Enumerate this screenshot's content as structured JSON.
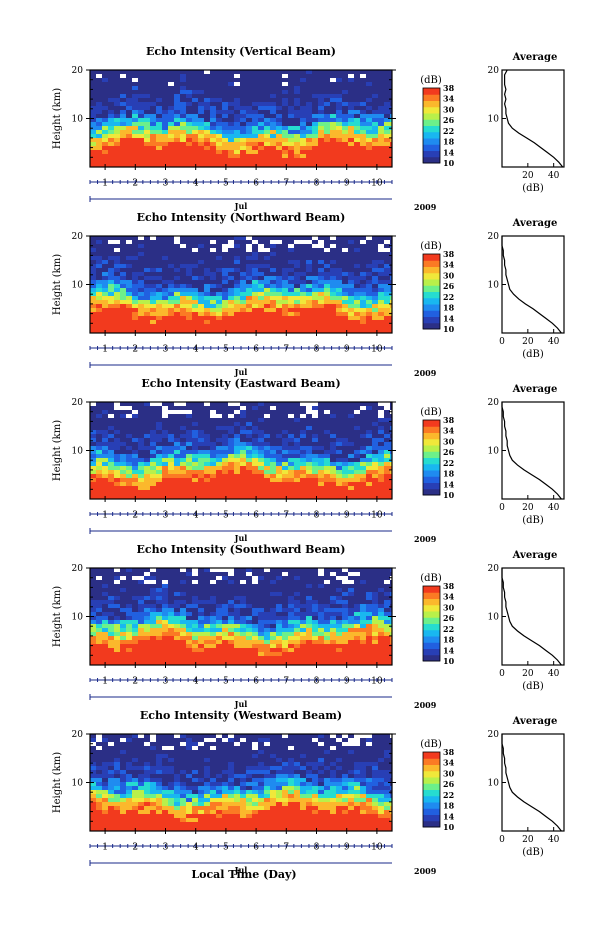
{
  "colors": {
    "colormap": [
      "#2b2f86",
      "#283fb5",
      "#2160e0",
      "#1f8bf0",
      "#19b7f0",
      "#26dcd0",
      "#6cf08a",
      "#b9f04a",
      "#f0e83a",
      "#fbb82c",
      "#fb7a24",
      "#f23a1e"
    ],
    "axis": "#000000",
    "time_tick": "#1a2a8a"
  },
  "chart_data": [
    {
      "type": "heatmap",
      "title": "Echo Intensity (Vertical Beam)",
      "ylabel": "Height (km)",
      "ylim": [
        0,
        20
      ],
      "yticks": [
        "20",
        "10"
      ],
      "xlim": [
        0.5,
        10.5
      ],
      "xticks": [
        "1",
        "2",
        "3",
        "4",
        "5",
        "6",
        "7",
        "8",
        "9",
        "10"
      ],
      "month_label": "Jul",
      "year_label": "2009",
      "colorbar": {
        "label": "(dB)",
        "ticks": [
          "38",
          "34",
          "30",
          "26",
          "22",
          "18",
          "14",
          "10"
        ],
        "range": [
          10,
          38
        ]
      },
      "average_profile": {
        "title": "Average",
        "xlabel": "(dB)",
        "xticks": [
          "20",
          "40"
        ],
        "yticks": [
          "20",
          "10"
        ],
        "xlim": [
          0,
          48
        ],
        "ylim": [
          0,
          20
        ],
        "points": [
          [
            47,
            0
          ],
          [
            44,
            1
          ],
          [
            40,
            2
          ],
          [
            35,
            3
          ],
          [
            30,
            4
          ],
          [
            25,
            5
          ],
          [
            19,
            6
          ],
          [
            13,
            7
          ],
          [
            8,
            8
          ],
          [
            5,
            9
          ],
          [
            4,
            10
          ],
          [
            3,
            11
          ],
          [
            3,
            12
          ],
          [
            2,
            13
          ],
          [
            3,
            14
          ],
          [
            2,
            15
          ],
          [
            3,
            16
          ],
          [
            2,
            17
          ],
          [
            2,
            18
          ],
          [
            2,
            19
          ],
          [
            4,
            20
          ]
        ]
      }
    },
    {
      "type": "heatmap",
      "title": "Echo Intensity (Northward Beam)",
      "ylabel": "Height (km)",
      "ylim": [
        0,
        20
      ],
      "yticks": [
        "20",
        "10"
      ],
      "xlim": [
        0.5,
        10.5
      ],
      "xticks": [
        "1",
        "2",
        "3",
        "4",
        "5",
        "6",
        "7",
        "8",
        "9",
        "10"
      ],
      "month_label": "Jul",
      "year_label": "2009",
      "colorbar": {
        "label": "(dB)",
        "ticks": [
          "38",
          "34",
          "30",
          "26",
          "22",
          "18",
          "14",
          "10"
        ],
        "range": [
          10,
          38
        ]
      },
      "average_profile": {
        "title": "Average",
        "xlabel": "(dB)",
        "xticks": [
          "0",
          "20",
          "40"
        ],
        "yticks": [
          "20",
          "10"
        ],
        "xlim": [
          0,
          48
        ],
        "ylim": [
          0,
          20
        ],
        "points": [
          [
            46,
            0
          ],
          [
            43,
            1
          ],
          [
            39,
            2
          ],
          [
            34,
            3
          ],
          [
            29,
            4
          ],
          [
            24,
            5
          ],
          [
            18,
            6
          ],
          [
            13,
            7
          ],
          [
            9,
            8
          ],
          [
            6,
            9
          ],
          [
            5,
            10
          ],
          [
            4,
            11
          ],
          [
            3,
            12
          ],
          [
            3,
            13
          ],
          [
            2,
            14
          ],
          [
            2,
            15
          ],
          [
            1,
            16
          ],
          [
            1,
            17
          ],
          [
            0,
            18
          ],
          [
            0,
            19
          ],
          [
            0,
            20
          ]
        ]
      }
    },
    {
      "type": "heatmap",
      "title": "Echo Intensity (Eastward Beam)",
      "ylabel": "Height (km)",
      "ylim": [
        0,
        20
      ],
      "yticks": [
        "20",
        "10"
      ],
      "xlim": [
        0.5,
        10.5
      ],
      "xticks": [
        "1",
        "2",
        "3",
        "4",
        "5",
        "6",
        "7",
        "8",
        "9",
        "10"
      ],
      "month_label": "Jul",
      "year_label": "2009",
      "colorbar": {
        "label": "(dB)",
        "ticks": [
          "38",
          "34",
          "30",
          "26",
          "22",
          "18",
          "14",
          "10"
        ],
        "range": [
          10,
          38
        ]
      },
      "average_profile": {
        "title": "Average",
        "xlabel": "(dB)",
        "xticks": [
          "0",
          "20",
          "40"
        ],
        "yticks": [
          "20",
          "10"
        ],
        "xlim": [
          0,
          48
        ],
        "ylim": [
          0,
          20
        ],
        "points": [
          [
            46,
            0
          ],
          [
            43,
            1
          ],
          [
            39,
            2
          ],
          [
            34,
            3
          ],
          [
            29,
            4
          ],
          [
            23,
            5
          ],
          [
            17,
            6
          ],
          [
            12,
            7
          ],
          [
            8,
            8
          ],
          [
            6,
            9
          ],
          [
            5,
            10
          ],
          [
            4,
            11
          ],
          [
            4,
            12
          ],
          [
            3,
            13
          ],
          [
            3,
            14
          ],
          [
            2,
            15
          ],
          [
            2,
            16
          ],
          [
            1,
            17
          ],
          [
            1,
            18
          ],
          [
            0,
            19
          ],
          [
            0,
            20
          ]
        ]
      }
    },
    {
      "type": "heatmap",
      "title": "Echo Intensity (Southward Beam)",
      "ylabel": "Height (km)",
      "ylim": [
        0,
        20
      ],
      "yticks": [
        "20",
        "10"
      ],
      "xlim": [
        0.5,
        10.5
      ],
      "xticks": [
        "1",
        "2",
        "3",
        "4",
        "5",
        "6",
        "7",
        "8",
        "9",
        "10"
      ],
      "month_label": "Jul",
      "year_label": "2009",
      "colorbar": {
        "label": "(dB)",
        "ticks": [
          "38",
          "34",
          "30",
          "26",
          "22",
          "18",
          "14",
          "10"
        ],
        "range": [
          10,
          38
        ]
      },
      "average_profile": {
        "title": "Average",
        "xlabel": "(dB)",
        "xticks": [
          "0",
          "20",
          "40"
        ],
        "yticks": [
          "20",
          "10"
        ],
        "xlim": [
          0,
          48
        ],
        "ylim": [
          0,
          20
        ],
        "points": [
          [
            46,
            0
          ],
          [
            43,
            1
          ],
          [
            39,
            2
          ],
          [
            34,
            3
          ],
          [
            29,
            4
          ],
          [
            23,
            5
          ],
          [
            17,
            6
          ],
          [
            12,
            7
          ],
          [
            8,
            8
          ],
          [
            6,
            9
          ],
          [
            5,
            10
          ],
          [
            4,
            11
          ],
          [
            3,
            12
          ],
          [
            3,
            13
          ],
          [
            2,
            14
          ],
          [
            2,
            15
          ],
          [
            1,
            16
          ],
          [
            1,
            17
          ],
          [
            0,
            18
          ],
          [
            0,
            19
          ],
          [
            0,
            20
          ]
        ]
      }
    },
    {
      "type": "heatmap",
      "title": "Echo Intensity (Westward Beam)",
      "ylabel": "Height (km)",
      "ylim": [
        0,
        20
      ],
      "yticks": [
        "20",
        "10"
      ],
      "xlim": [
        0.5,
        10.5
      ],
      "xticks": [
        "1",
        "2",
        "3",
        "4",
        "5",
        "6",
        "7",
        "8",
        "9",
        "10"
      ],
      "month_label": "Jul",
      "year_label": "2009",
      "colorbar": {
        "label": "(dB)",
        "ticks": [
          "38",
          "34",
          "30",
          "26",
          "22",
          "18",
          "14",
          "10"
        ],
        "range": [
          10,
          38
        ]
      },
      "average_profile": {
        "title": "Average",
        "xlabel": "(dB)",
        "xticks": [
          "0",
          "20",
          "40"
        ],
        "yticks": [
          "20",
          "10"
        ],
        "xlim": [
          0,
          48
        ],
        "ylim": [
          0,
          20
        ],
        "points": [
          [
            46,
            0
          ],
          [
            43,
            1
          ],
          [
            39,
            2
          ],
          [
            34,
            3
          ],
          [
            29,
            4
          ],
          [
            23,
            5
          ],
          [
            17,
            6
          ],
          [
            12,
            7
          ],
          [
            8,
            8
          ],
          [
            6,
            9
          ],
          [
            5,
            10
          ],
          [
            4,
            11
          ],
          [
            3,
            12
          ],
          [
            3,
            13
          ],
          [
            2,
            14
          ],
          [
            2,
            15
          ],
          [
            1,
            16
          ],
          [
            1,
            17
          ],
          [
            0,
            18
          ],
          [
            0,
            19
          ],
          [
            0,
            20
          ]
        ]
      }
    }
  ],
  "figure": {
    "xlabel": "Local Time (Day)"
  }
}
